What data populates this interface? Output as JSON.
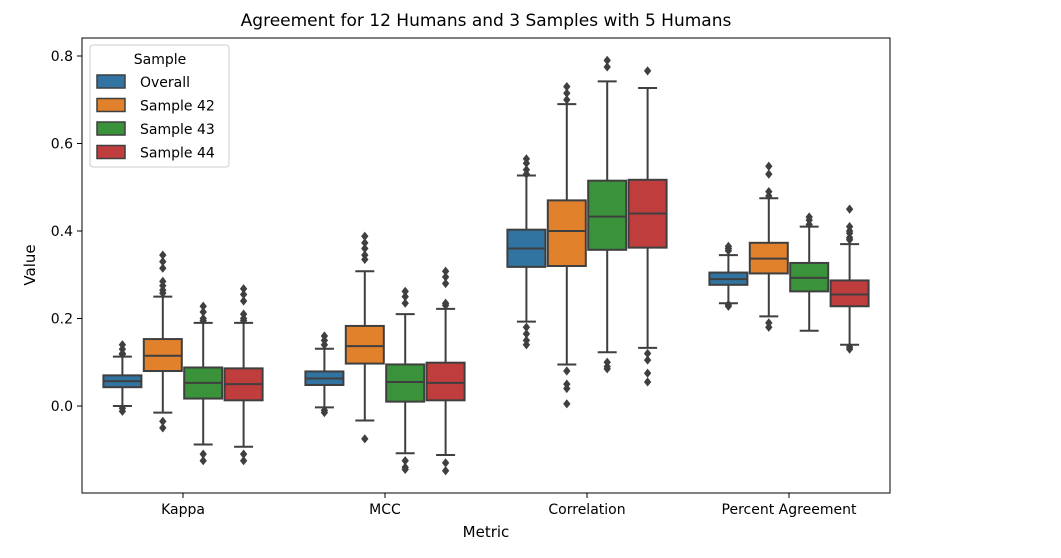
{
  "chart_data": {
    "type": "box",
    "title": "Agreement for 12 Humans and 3 Samples with 5 Humans",
    "xlabel": "Metric",
    "ylabel": "Value",
    "ylim": [
      -0.2,
      0.82
    ],
    "yticks": [
      0.0,
      0.2,
      0.4,
      0.6,
      0.8
    ],
    "ytick_labels": [
      "0.0",
      "0.2",
      "0.4",
      "0.6",
      "0.8"
    ],
    "categories": [
      "Kappa",
      "MCC",
      "Correlation",
      "Percent Agreement"
    ],
    "legend": {
      "title": "Sample",
      "position": "top-left"
    },
    "grid": false,
    "series": [
      {
        "name": "Overall",
        "color": "#3274a1",
        "boxes": [
          {
            "whislo": 0.0,
            "q1": 0.043,
            "med": 0.057,
            "q3": 0.07,
            "whishi": 0.113,
            "fliers": [
              0.14,
              0.13,
              0.12,
              0.118,
              -0.005,
              -0.012
            ]
          },
          {
            "whislo": -0.003,
            "q1": 0.048,
            "med": 0.063,
            "q3": 0.079,
            "whishi": 0.131,
            "fliers": [
              0.16,
              0.15,
              0.14,
              -0.01,
              -0.015
            ]
          },
          {
            "whislo": 0.193,
            "q1": 0.318,
            "med": 0.36,
            "q3": 0.403,
            "whishi": 0.527,
            "fliers": [
              0.565,
              0.555,
              0.54,
              0.53,
              0.18,
              0.165,
              0.15,
              0.14
            ]
          },
          {
            "whislo": 0.235,
            "q1": 0.277,
            "med": 0.29,
            "q3": 0.305,
            "whishi": 0.345,
            "fliers": [
              0.365,
              0.36,
              0.355,
              0.232,
              0.228
            ]
          }
        ]
      },
      {
        "name": "Sample 42",
        "color": "#e1812c",
        "boxes": [
          {
            "whislo": -0.015,
            "q1": 0.08,
            "med": 0.115,
            "q3": 0.153,
            "whishi": 0.25,
            "fliers": [
              0.345,
              0.33,
              0.315,
              0.285,
              0.275,
              0.265,
              0.258,
              -0.035,
              -0.05
            ]
          },
          {
            "whislo": -0.033,
            "q1": 0.097,
            "med": 0.137,
            "q3": 0.183,
            "whishi": 0.308,
            "fliers": [
              0.388,
              0.373,
              0.36,
              0.345,
              0.335,
              -0.075
            ]
          },
          {
            "whislo": 0.095,
            "q1": 0.32,
            "med": 0.4,
            "q3": 0.47,
            "whishi": 0.69,
            "fliers": [
              0.73,
              0.715,
              0.7,
              0.08,
              0.05,
              0.04,
              0.005
            ]
          },
          {
            "whislo": 0.205,
            "q1": 0.303,
            "med": 0.337,
            "q3": 0.373,
            "whishi": 0.475,
            "fliers": [
              0.548,
              0.53,
              0.49,
              0.48,
              0.19,
              0.18
            ]
          }
        ]
      },
      {
        "name": "Sample 43",
        "color": "#3a923a",
        "boxes": [
          {
            "whislo": -0.088,
            "q1": 0.017,
            "med": 0.053,
            "q3": 0.088,
            "whishi": 0.19,
            "fliers": [
              0.228,
              0.215,
              0.2,
              0.195,
              -0.11,
              -0.125
            ]
          },
          {
            "whislo": -0.108,
            "q1": 0.01,
            "med": 0.055,
            "q3": 0.095,
            "whishi": 0.21,
            "fliers": [
              0.262,
              0.25,
              0.235,
              -0.125,
              -0.14,
              -0.145
            ]
          },
          {
            "whislo": 0.123,
            "q1": 0.357,
            "med": 0.433,
            "q3": 0.515,
            "whishi": 0.742,
            "fliers": [
              0.79,
              0.775,
              0.1,
              0.09,
              0.085
            ]
          },
          {
            "whislo": 0.172,
            "q1": 0.262,
            "med": 0.293,
            "q3": 0.327,
            "whishi": 0.41,
            "fliers": [
              0.432,
              0.425,
              0.415
            ]
          }
        ]
      },
      {
        "name": "Sample 44",
        "color": "#c03d3e",
        "boxes": [
          {
            "whislo": -0.093,
            "q1": 0.013,
            "med": 0.05,
            "q3": 0.086,
            "whishi": 0.19,
            "fliers": [
              0.268,
              0.255,
              0.24,
              0.21,
              0.2,
              0.195,
              -0.11,
              -0.125
            ]
          },
          {
            "whislo": -0.112,
            "q1": 0.013,
            "med": 0.053,
            "q3": 0.099,
            "whishi": 0.222,
            "fliers": [
              0.308,
              0.295,
              0.28,
              0.235,
              0.23,
              -0.13,
              -0.148
            ]
          },
          {
            "whislo": 0.133,
            "q1": 0.362,
            "med": 0.44,
            "q3": 0.517,
            "whishi": 0.727,
            "fliers": [
              0.766,
              0.12,
              0.105,
              0.075,
              0.055
            ]
          },
          {
            "whislo": 0.14,
            "q1": 0.228,
            "med": 0.255,
            "q3": 0.287,
            "whishi": 0.37,
            "fliers": [
              0.45,
              0.41,
              0.4,
              0.395,
              0.385,
              0.38,
              0.135,
              0.13
            ]
          }
        ]
      }
    ]
  }
}
